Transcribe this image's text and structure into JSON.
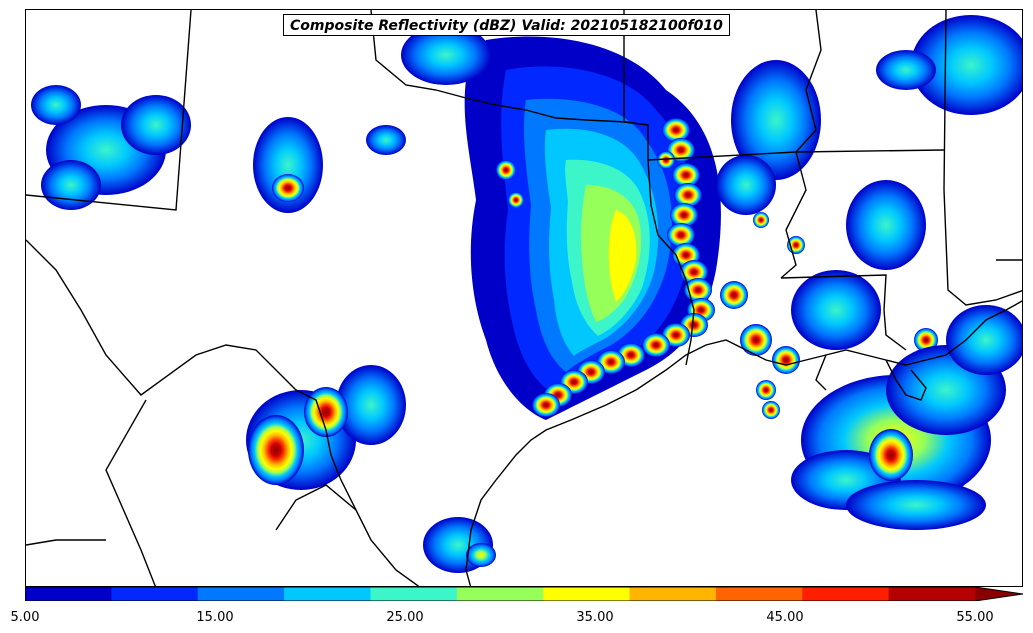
{
  "title": "Composite Reflectivity (dBZ) Valid: 202105182100f010",
  "colorbar": {
    "levels": [
      5,
      10,
      15,
      20,
      25,
      30,
      35,
      40,
      45,
      50,
      55
    ],
    "colors": [
      "#0000c8",
      "#0028ff",
      "#0078ff",
      "#00c8ff",
      "#3cf5c8",
      "#96ff5a",
      "#ffff00",
      "#ffb400",
      "#ff6400",
      "#ff1e00",
      "#b40000"
    ],
    "over_color": "#8a0000",
    "tick_labels": [
      "5.00",
      "15.00",
      "25.00",
      "35.00",
      "45.00",
      "55.00"
    ]
  }
}
